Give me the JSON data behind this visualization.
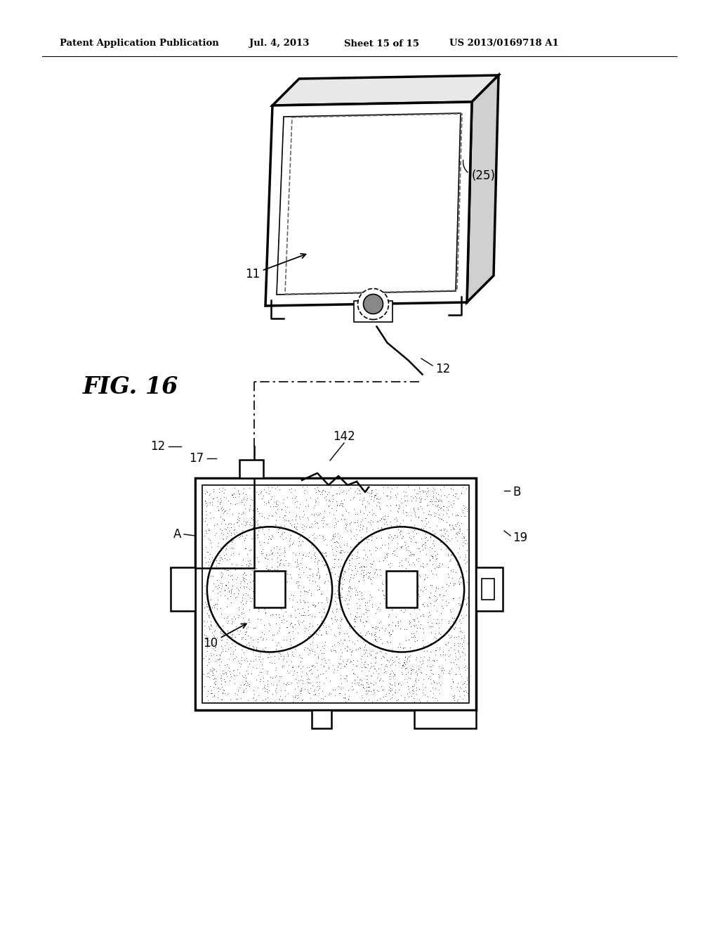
{
  "bg_color": "#ffffff",
  "header_text": "Patent Application Publication",
  "header_date": "Jul. 4, 2013",
  "header_sheet": "Sheet 15 of 15",
  "header_patent": "US 2013/0169718 A1",
  "fig_label": "FIG. 16"
}
